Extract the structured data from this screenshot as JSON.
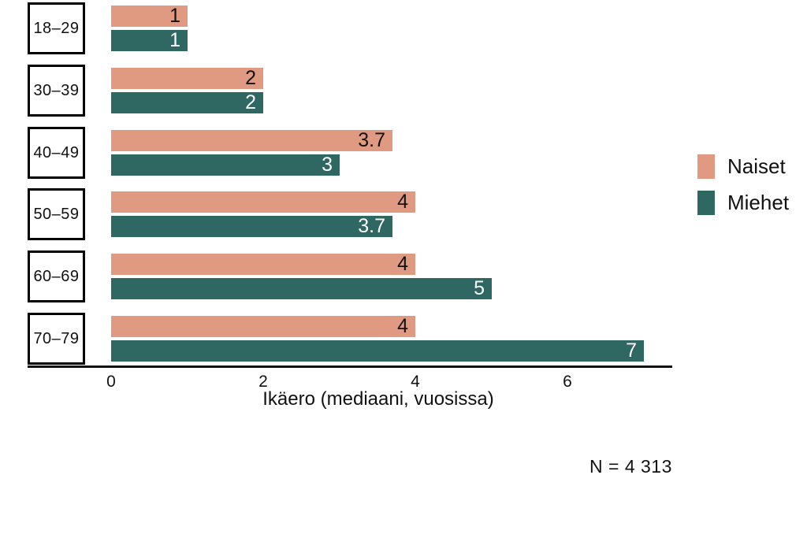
{
  "chart_data": {
    "type": "bar",
    "orientation": "horizontal",
    "title": "",
    "xlabel": "Ikäero (mediaani, vuosissa)",
    "ylabel": "",
    "categories": [
      "18–29",
      "30–39",
      "40–49",
      "50–59",
      "60–69",
      "70–79"
    ],
    "series": [
      {
        "name": "Naiset",
        "color": "#E09A82",
        "label_color": "#111111",
        "values": [
          1,
          2,
          3.7,
          4,
          4,
          4
        ],
        "labels": [
          "1",
          "2",
          "3.7",
          "4",
          "4",
          "4"
        ]
      },
      {
        "name": "Miehet",
        "color": "#2F6862",
        "label_color": "#FFFFFF",
        "values": [
          1,
          2,
          3,
          3.7,
          5,
          7
        ],
        "labels": [
          "1",
          "2",
          "3",
          "3.7",
          "5",
          "7"
        ]
      }
    ],
    "x_ticks": [
      0,
      2,
      4,
      6
    ],
    "xlim": [
      0,
      7.35
    ],
    "grid": false,
    "legend_position": "right",
    "note": "N = 4 313",
    "background_color": "#FFFFFF",
    "axis_color": "#111111"
  }
}
